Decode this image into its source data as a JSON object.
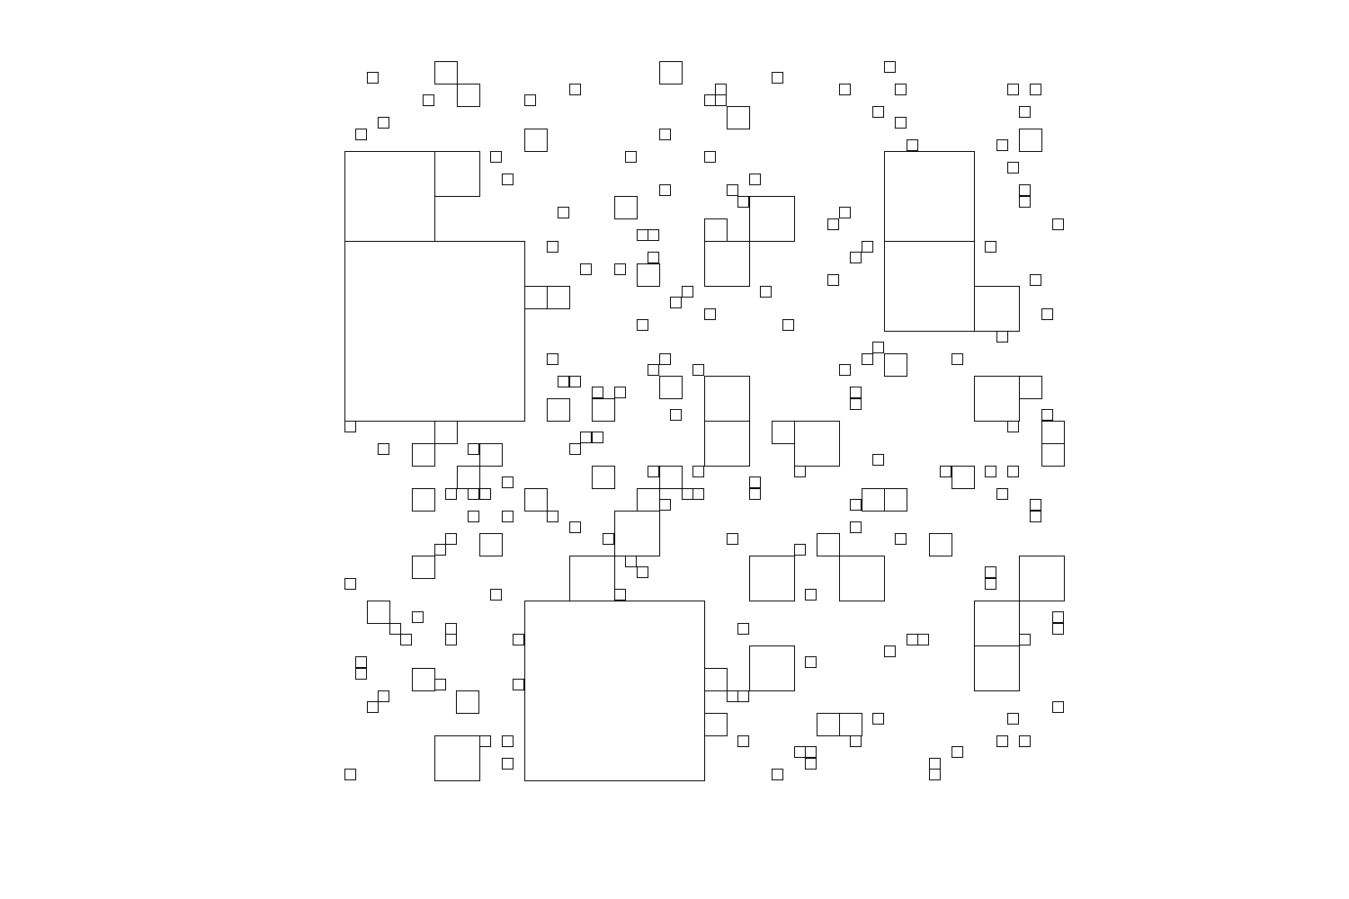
{
  "figure": {
    "kind": "quadtree-style square tiling",
    "stroke_color": "#000000",
    "fill_color": "none",
    "background_color": "#ffffff"
  }
}
